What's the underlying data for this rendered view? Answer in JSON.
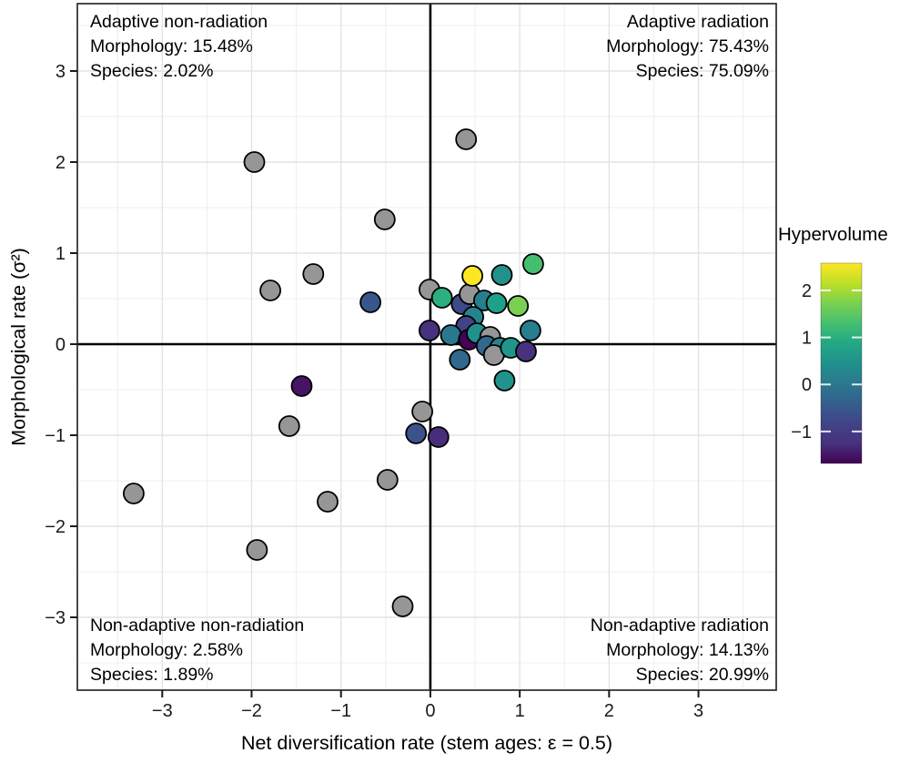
{
  "chart_data": {
    "type": "scatter",
    "xlabel": "Net diversification rate (stem ages: ε = 0.5)",
    "ylabel": "Morphological rate (σ²)",
    "xlim": [
      -3.95,
      3.87
    ],
    "ylim": [
      -3.8,
      3.74
    ],
    "x_ticks": {
      "values": [
        -3,
        -2,
        -1,
        0,
        1,
        2,
        3
      ],
      "labels": [
        "−3",
        "−2",
        "−1",
        "0",
        "1",
        "2",
        "3"
      ]
    },
    "y_ticks": {
      "values": [
        -3,
        -2,
        -1,
        0,
        1,
        2,
        3
      ],
      "labels": [
        "−3",
        "−2",
        "−1",
        "0",
        "1",
        "2",
        "3"
      ]
    },
    "grid": {
      "major_color": "#e3e3e3",
      "minor_color": "#efefef",
      "minor_offsets": [
        -3.5,
        -2.5,
        -1.5,
        -0.5,
        0.5,
        1.5,
        2.5,
        3.5
      ]
    },
    "reference_lines": {
      "x": 0,
      "y": 0,
      "color": "#000000"
    },
    "quadrants": {
      "top_left": {
        "title": "Adaptive non-radiation",
        "morphology": "Morphology: 15.48%",
        "species": "Species: 2.02%"
      },
      "top_right": {
        "title": "Adaptive radiation",
        "morphology": "Morphology: 75.43%",
        "species": "Species: 75.09%"
      },
      "bottom_left": {
        "title": "Non-adaptive non-radiation",
        "morphology": "Morphology: 2.58%",
        "species": "Species: 1.89%"
      },
      "bottom_right": {
        "title": "Non-adaptive radiation",
        "morphology": "Morphology: 14.13%",
        "species": "Species: 20.99%"
      }
    },
    "legend": {
      "title": "Hypervolume",
      "range": [
        -1.68,
        2.58
      ],
      "tick_values": [
        2,
        1,
        0,
        -1
      ],
      "tick_labels": [
        "2",
        "1",
        "0",
        "−1"
      ],
      "gradient_top_to_bottom": [
        "#fde725",
        "#bddf26",
        "#7ad151",
        "#44bf70",
        "#22a884",
        "#21918c",
        "#2a788e",
        "#355f8d",
        "#414487",
        "#46327e",
        "#440154"
      ]
    },
    "na_color": "#969696",
    "point_style": {
      "radius": 11,
      "stroke": "#000000",
      "stroke_width": 1.8
    },
    "points": [
      {
        "x": 0.4,
        "y": 2.25,
        "hv": null,
        "color": null
      },
      {
        "x": -1.97,
        "y": 2.0,
        "hv": null,
        "color": null
      },
      {
        "x": -0.51,
        "y": 1.37,
        "hv": null,
        "color": null
      },
      {
        "x": -1.31,
        "y": 0.77,
        "hv": null,
        "color": null
      },
      {
        "x": -1.79,
        "y": 0.59,
        "hv": null,
        "color": null
      },
      {
        "x": -0.01,
        "y": 0.6,
        "hv": null,
        "color": null
      },
      {
        "x": 0.35,
        "y": 0.44,
        "hv": -0.45,
        "color": "#3e4989"
      },
      {
        "x": 0.44,
        "y": 0.55,
        "hv": null,
        "color": null
      },
      {
        "x": 0.47,
        "y": 0.75,
        "hv": 2.4,
        "color": "#fde725"
      },
      {
        "x": 0.13,
        "y": 0.51,
        "hv": 1.25,
        "color": "#2ab07f"
      },
      {
        "x": 0.6,
        "y": 0.48,
        "hv": 0.5,
        "color": "#277f8e"
      },
      {
        "x": 0.74,
        "y": 0.45,
        "hv": 1.0,
        "color": "#1fa187"
      },
      {
        "x": 0.8,
        "y": 0.76,
        "hv": 0.8,
        "color": "#21918c"
      },
      {
        "x": 1.15,
        "y": 0.88,
        "hv": 1.5,
        "color": "#44bf70"
      },
      {
        "x": 0.98,
        "y": 0.42,
        "hv": 1.8,
        "color": "#7ad151"
      },
      {
        "x": -0.67,
        "y": 0.46,
        "hv": -0.2,
        "color": "#39568c"
      },
      {
        "x": -0.01,
        "y": 0.15,
        "hv": -0.8,
        "color": "#46327e"
      },
      {
        "x": 0.48,
        "y": 0.3,
        "hv": 0.6,
        "color": "#25848e"
      },
      {
        "x": 0.4,
        "y": 0.2,
        "hv": -0.55,
        "color": "#414287"
      },
      {
        "x": 0.23,
        "y": 0.1,
        "hv": 0.4,
        "color": "#2a788e"
      },
      {
        "x": 0.43,
        "y": 0.05,
        "hv": -1.65,
        "color": "#440356"
      },
      {
        "x": 0.52,
        "y": 0.12,
        "hv": 0.8,
        "color": "#21918c"
      },
      {
        "x": 0.67,
        "y": 0.08,
        "hv": null,
        "color": null
      },
      {
        "x": 0.63,
        "y": -0.02,
        "hv": 0.1,
        "color": "#31688e"
      },
      {
        "x": 0.78,
        "y": -0.04,
        "hv": 0.62,
        "color": "#24868e"
      },
      {
        "x": 0.71,
        "y": -0.12,
        "hv": null,
        "color": null
      },
      {
        "x": 0.9,
        "y": -0.04,
        "hv": 0.9,
        "color": "#1f958b"
      },
      {
        "x": 1.07,
        "y": -0.08,
        "hv": -0.8,
        "color": "#46327e"
      },
      {
        "x": 1.12,
        "y": 0.15,
        "hv": 0.48,
        "color": "#287d8e"
      },
      {
        "x": 0.33,
        "y": -0.17,
        "hv": 0.1,
        "color": "#31688e"
      },
      {
        "x": 0.83,
        "y": -0.4,
        "hv": 0.85,
        "color": "#20938c"
      },
      {
        "x": -1.44,
        "y": -0.46,
        "hv": -1.35,
        "color": "#471365"
      },
      {
        "x": -0.09,
        "y": -0.74,
        "hv": null,
        "color": null
      },
      {
        "x": -1.58,
        "y": -0.9,
        "hv": null,
        "color": null
      },
      {
        "x": -0.16,
        "y": -0.98,
        "hv": -0.28,
        "color": "#3b528b"
      },
      {
        "x": 0.09,
        "y": -1.02,
        "hv": -0.9,
        "color": "#472d7b"
      },
      {
        "x": -0.48,
        "y": -1.49,
        "hv": null,
        "color": null
      },
      {
        "x": -3.32,
        "y": -1.64,
        "hv": null,
        "color": null
      },
      {
        "x": -1.15,
        "y": -1.73,
        "hv": null,
        "color": null
      },
      {
        "x": -1.94,
        "y": -2.26,
        "hv": null,
        "color": null
      },
      {
        "x": -0.31,
        "y": -2.88,
        "hv": null,
        "color": null
      }
    ]
  }
}
